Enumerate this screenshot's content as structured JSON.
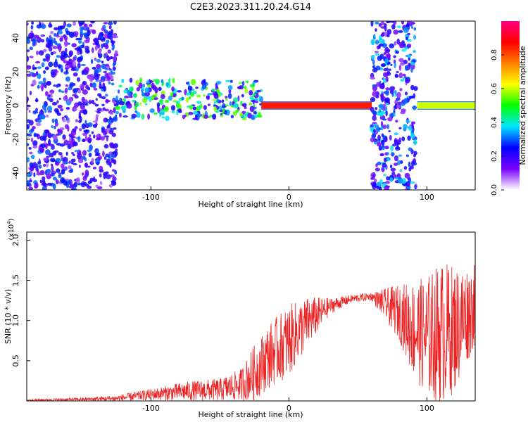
{
  "figure": {
    "title": "C2E3.2023.311.20.24.G14"
  },
  "chart_data": [
    {
      "type": "heatmap",
      "xlabel": "Height of straight line (km)",
      "ylabel": "Frequency (Hz)",
      "xlim": [
        -190,
        135
      ],
      "ylim": [
        -50,
        50
      ],
      "xticks": [
        -100,
        0,
        100
      ],
      "yticks": [
        -40,
        -20,
        0,
        20,
        40
      ],
      "colorbar": {
        "label": "Normalized spectral amplitude",
        "ticks": [
          "0.0",
          "0.2",
          "0.4",
          "0.6",
          "0.8"
        ],
        "range": [
          0,
          1
        ],
        "colors": [
          "#ffffff",
          "#7a00ff",
          "#0000ff",
          "#00e5ff",
          "#00ff00",
          "#ffff00",
          "#ff7f00",
          "#ff0000",
          "#ff0080"
        ]
      },
      "regions": [
        {
          "name": "broadband noise",
          "x": [
            -190,
            -125
          ],
          "freq": [
            -50,
            50
          ],
          "amplitude": 0.25
        },
        {
          "name": "diffuse echo band",
          "x": [
            -125,
            -20
          ],
          "freq": [
            -8,
            15
          ],
          "amplitude": 0.45
        },
        {
          "name": "narrow stable line",
          "x": [
            -20,
            60
          ],
          "freq": [
            -2,
            2
          ],
          "amplitude": 0.85
        },
        {
          "name": "broadband noise",
          "x": [
            60,
            92
          ],
          "freq": [
            -50,
            50
          ],
          "amplitude": 0.3
        },
        {
          "name": "narrow stable line",
          "x": [
            93,
            135
          ],
          "freq": [
            -2,
            2
          ],
          "amplitude": 0.6
        }
      ]
    },
    {
      "type": "line",
      "xlabel": "Height of straight line (km)",
      "ylabel": "SNR (10 * v/v)",
      "yscale_label": "(x10",
      "yscale_exp": "4",
      "yscale_close": ")",
      "xlim": [
        -190,
        135
      ],
      "ylim": [
        0,
        2.1
      ],
      "xticks": [
        -100,
        0,
        100
      ],
      "yticks": [
        0.5,
        1.0,
        1.5,
        2.0
      ],
      "ytick_labels": [
        "0.5",
        "1.0",
        "1.5",
        "2.0"
      ],
      "color": "#ee2222",
      "envelope": {
        "x": [
          -190,
          -150,
          -125,
          -100,
          -75,
          -50,
          -35,
          -25,
          -15,
          0,
          15,
          30,
          45,
          60,
          70,
          80,
          90,
          100,
          110,
          120,
          135
        ],
        "base": [
          0.01,
          0.02,
          0.03,
          0.08,
          0.12,
          0.14,
          0.2,
          0.35,
          0.55,
          0.75,
          1.0,
          1.18,
          1.27,
          1.3,
          1.2,
          1.1,
          0.9,
          0.8,
          0.85,
          0.9,
          1.2
        ],
        "amp": [
          0.01,
          0.02,
          0.04,
          0.07,
          0.12,
          0.14,
          0.2,
          0.35,
          0.4,
          0.45,
          0.3,
          0.1,
          0.05,
          0.05,
          0.2,
          0.35,
          0.6,
          0.75,
          0.9,
          0.8,
          0.5
        ]
      }
    }
  ]
}
